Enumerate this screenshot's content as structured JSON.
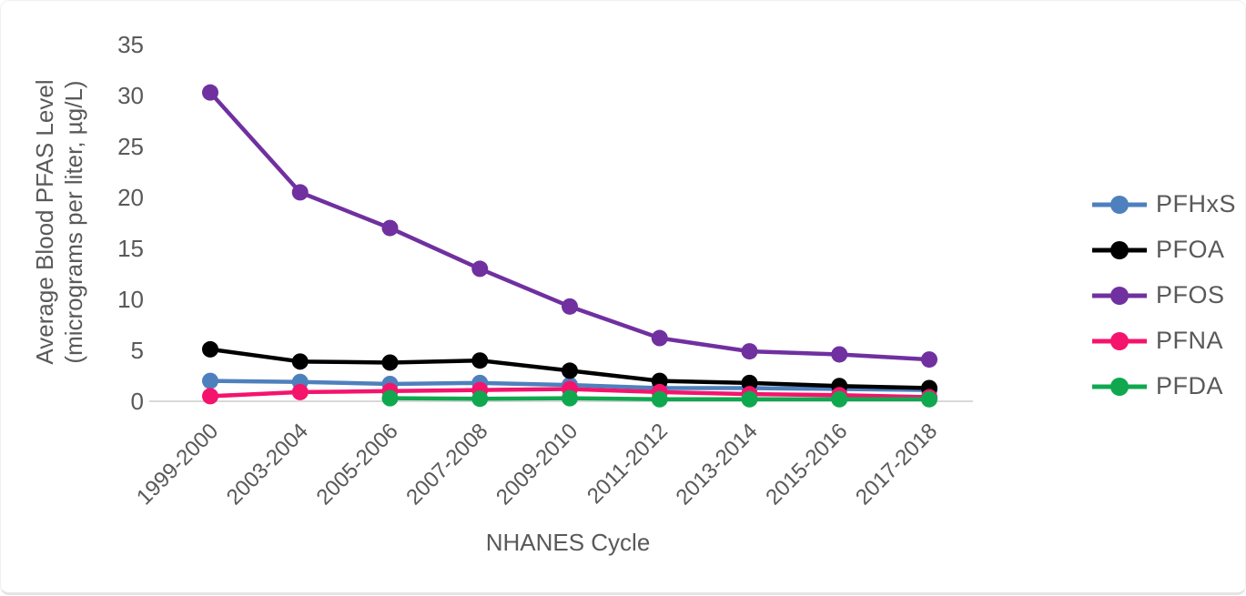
{
  "figure": {
    "background": "#ffffff",
    "text_color": "#595959",
    "axis_line_color": "#d9d9d9"
  },
  "chart_data": {
    "type": "line",
    "title": "",
    "xlabel": "NHANES Cycle",
    "ylabel_line1": "Average Blood PFAS Level",
    "ylabel_line2": "(micrograms per liter, µg/L)",
    "categories": [
      "1999-2000",
      "2003-2004",
      "2005-2006",
      "2007-2008",
      "2009-2010",
      "2011-2012",
      "2013-2014",
      "2015-2016",
      "2017-2018"
    ],
    "series": [
      {
        "name": "PFHxS",
        "color": "#4e80bd",
        "values": [
          2.0,
          1.9,
          1.7,
          1.8,
          1.6,
          1.3,
          1.3,
          1.2,
          1.1
        ]
      },
      {
        "name": "PFOA",
        "color": "#000000",
        "values": [
          5.1,
          3.9,
          3.8,
          4.0,
          3.0,
          2.0,
          1.8,
          1.5,
          1.3
        ]
      },
      {
        "name": "PFOS",
        "color": "#7030a0",
        "values": [
          30.3,
          20.5,
          17.0,
          13.0,
          9.3,
          6.2,
          4.9,
          4.6,
          4.1
        ]
      },
      {
        "name": "PFNA",
        "color": "#f4146c",
        "values": [
          0.5,
          0.9,
          1.0,
          1.1,
          1.2,
          0.9,
          0.7,
          0.6,
          0.4
        ]
      },
      {
        "name": "PFDA",
        "color": "#0fa84f",
        "values": [
          null,
          null,
          0.3,
          0.25,
          0.3,
          0.2,
          0.2,
          0.2,
          0.2
        ]
      }
    ],
    "yticks": [
      0,
      5,
      10,
      15,
      20,
      25,
      30,
      35
    ],
    "ylim": [
      0,
      35
    ],
    "grid": false,
    "legend_position": "right"
  }
}
